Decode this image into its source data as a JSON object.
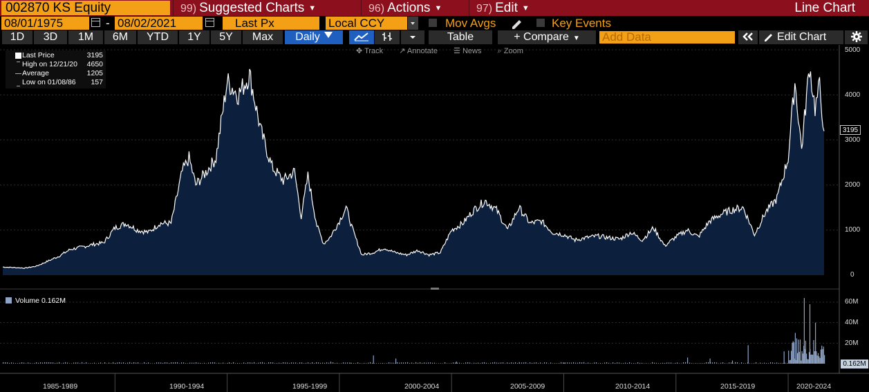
{
  "header": {
    "ticker": "002870 KS Equity",
    "menus": [
      {
        "num": "99)",
        "label": "Suggested Charts"
      },
      {
        "num": "96)",
        "label": "Actions"
      },
      {
        "num": "97)",
        "label": "Edit"
      }
    ],
    "chart_type": "Line Chart"
  },
  "settings": {
    "start_date": "08/01/1975",
    "end_date": "08/02/2021",
    "separator": "-",
    "field": "Last Px",
    "currency": "Local CCY",
    "mov_avgs": "Mov Avgs",
    "key_events": "Key Events"
  },
  "toolbar": {
    "ranges": [
      "1D",
      "3D",
      "1M",
      "6M",
      "YTD",
      "1Y",
      "5Y",
      "Max"
    ],
    "frequency": "Daily",
    "table_label": "Table",
    "compare_label": "+ Compare",
    "add_data_placeholder": "Add Data",
    "edit_chart_label": "Edit Chart",
    "collapse_icon": "double-chevron-left-icon",
    "settings_icon": "gear-icon"
  },
  "tools": [
    "Track",
    "Annotate",
    "News",
    "Zoom"
  ],
  "legend": {
    "rows": [
      {
        "label": "Last Price",
        "value": "3195"
      },
      {
        "label": "High on 12/21/20",
        "value": "4650"
      },
      {
        "label": "Average",
        "value": "1205"
      },
      {
        "label": "Low on 01/08/86",
        "value": "157"
      }
    ],
    "volume": "Volume 0.162M"
  },
  "price_axis": [
    "5000",
    "4000",
    "3000",
    "2000",
    "1000",
    "0"
  ],
  "volume_axis": [
    "60M",
    "40M",
    "20M"
  ],
  "last_price_tag": "3195",
  "volume_tag": "0.162M",
  "x_axis": [
    "1985-1989",
    "1990-1994",
    "1995-1999",
    "2000-2004",
    "2005-2009",
    "2010-2014",
    "2015-2019",
    "2020-2024"
  ],
  "colors": {
    "accent_orange": "#f3a017",
    "header_red": "#8b0f1c",
    "active_blue": "#1e5fbf",
    "area_fill": "#0c1f3d",
    "line": "#ffffff",
    "volume_bar": "#8fa3c4"
  },
  "chart_data": {
    "type": "area",
    "title": "",
    "x_range": [
      "1985-01",
      "2021-08"
    ],
    "ylim": [
      0,
      5000
    ],
    "series": [
      {
        "name": "Last Price",
        "points": [
          [
            1985.0,
            180
          ],
          [
            1986.0,
            157
          ],
          [
            1986.5,
            200
          ],
          [
            1987.0,
            310
          ],
          [
            1987.5,
            420
          ],
          [
            1988.0,
            570
          ],
          [
            1988.5,
            620
          ],
          [
            1989.0,
            680
          ],
          [
            1989.5,
            720
          ],
          [
            1990.0,
            1050
          ],
          [
            1990.5,
            1150
          ],
          [
            1991.0,
            1000
          ],
          [
            1991.5,
            950
          ],
          [
            1992.0,
            1150
          ],
          [
            1992.5,
            1150
          ],
          [
            1993.0,
            2300
          ],
          [
            1993.3,
            2600
          ],
          [
            1993.6,
            2000
          ],
          [
            1994.0,
            2250
          ],
          [
            1994.5,
            2600
          ],
          [
            1995.0,
            4300
          ],
          [
            1995.5,
            4000
          ],
          [
            1996.0,
            4450
          ],
          [
            1996.5,
            3200
          ],
          [
            1997.0,
            2400
          ],
          [
            1997.5,
            2100
          ],
          [
            1998.0,
            2300
          ],
          [
            1998.3,
            1300
          ],
          [
            1998.6,
            2200
          ],
          [
            1999.0,
            1100
          ],
          [
            1999.3,
            700
          ],
          [
            1999.6,
            850
          ],
          [
            2000.0,
            1200
          ],
          [
            2000.3,
            1500
          ],
          [
            2000.6,
            1000
          ],
          [
            2001.0,
            450
          ],
          [
            2001.5,
            500
          ],
          [
            2002.0,
            600
          ],
          [
            2002.5,
            500
          ],
          [
            2003.0,
            450
          ],
          [
            2003.5,
            550
          ],
          [
            2004.0,
            450
          ],
          [
            2004.5,
            500
          ],
          [
            2005.0,
            1000
          ],
          [
            2005.5,
            1150
          ],
          [
            2006.0,
            1450
          ],
          [
            2006.5,
            1650
          ],
          [
            2007.0,
            1450
          ],
          [
            2007.5,
            1000
          ],
          [
            2008.0,
            1500
          ],
          [
            2008.5,
            1150
          ],
          [
            2009.0,
            1200
          ],
          [
            2009.5,
            950
          ],
          [
            2010.0,
            900
          ],
          [
            2010.5,
            780
          ],
          [
            2011.0,
            830
          ],
          [
            2011.5,
            870
          ],
          [
            2012.0,
            830
          ],
          [
            2012.5,
            800
          ],
          [
            2013.0,
            950
          ],
          [
            2013.5,
            780
          ],
          [
            2014.0,
            1050
          ],
          [
            2014.5,
            650
          ],
          [
            2015.0,
            850
          ],
          [
            2015.5,
            1000
          ],
          [
            2016.0,
            850
          ],
          [
            2016.5,
            1200
          ],
          [
            2017.0,
            1350
          ],
          [
            2017.5,
            1450
          ],
          [
            2018.0,
            1500
          ],
          [
            2018.5,
            900
          ],
          [
            2019.0,
            1400
          ],
          [
            2019.5,
            1700
          ],
          [
            2020.0,
            2600
          ],
          [
            2020.3,
            4300
          ],
          [
            2020.6,
            2800
          ],
          [
            2020.95,
            4650
          ],
          [
            2021.2,
            3700
          ],
          [
            2021.4,
            4200
          ],
          [
            2021.6,
            3195
          ]
        ]
      },
      {
        "name": "Volume",
        "unit": "M",
        "points": [
          [
            1990.0,
            0.3
          ],
          [
            1995.0,
            0.5
          ],
          [
            1999.6,
            2
          ],
          [
            2000.5,
            1
          ],
          [
            2001.5,
            8
          ],
          [
            2002.5,
            5
          ],
          [
            2005.2,
            2
          ],
          [
            2008.0,
            1.5
          ],
          [
            2010.0,
            1
          ],
          [
            2015.5,
            6
          ],
          [
            2016.5,
            5
          ],
          [
            2017.5,
            3
          ],
          [
            2018.2,
            18
          ],
          [
            2019.8,
            12
          ],
          [
            2020.3,
            30
          ],
          [
            2020.7,
            64
          ],
          [
            2020.95,
            58
          ],
          [
            2021.2,
            40
          ],
          [
            2021.5,
            6
          ]
        ]
      }
    ]
  }
}
